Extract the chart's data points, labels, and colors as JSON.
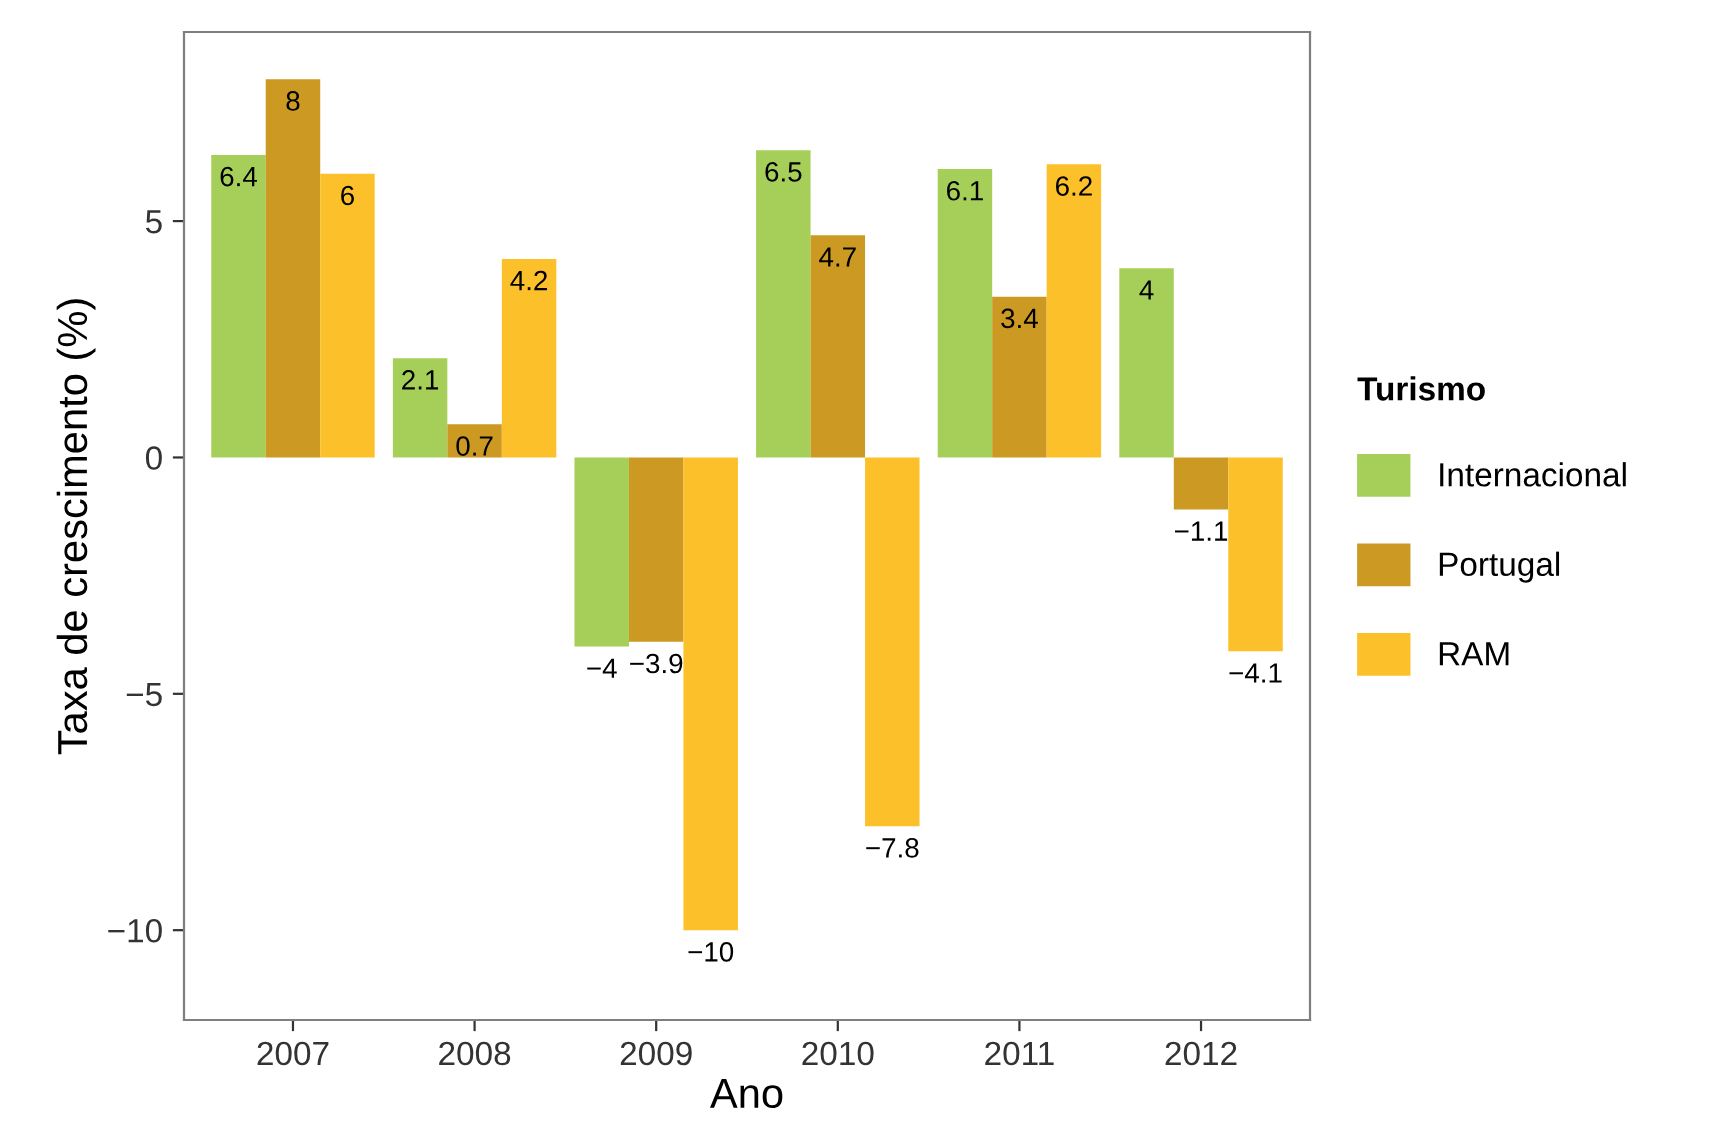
{
  "chart_data": {
    "type": "bar",
    "xlabel": "Ano",
    "ylabel": "Taxa de crescimento (%)",
    "legend_title": "Turismo",
    "categories": [
      "2007",
      "2008",
      "2009",
      "2010",
      "2011",
      "2012"
    ],
    "series": [
      {
        "name": "Internacional",
        "color": "#a6cf5a",
        "values": [
          6.4,
          2.1,
          -4,
          6.5,
          6.1,
          4
        ],
        "value_labels": [
          "6.4",
          "2.1",
          "−4",
          "6.5",
          "6.1",
          "4"
        ]
      },
      {
        "name": "Portugal",
        "color": "#cc9a22",
        "values": [
          8,
          0.7,
          -3.9,
          4.7,
          3.4,
          -1.1
        ],
        "value_labels": [
          "8",
          "0.7",
          "−3.9",
          "4.7",
          "3.4",
          "−1.1"
        ]
      },
      {
        "name": "RAM",
        "color": "#fcc12a",
        "values": [
          6,
          4.2,
          -10,
          -7.8,
          6.2,
          -4.1
        ],
        "value_labels": [
          "6",
          "4.2",
          "−10",
          "−7.8",
          "6.2",
          "−4.1"
        ]
      }
    ],
    "ylim": [
      -11.9,
      9.0
    ],
    "yticks": [
      {
        "value": -10,
        "label": "−10"
      },
      {
        "value": -5,
        "label": "−5"
      },
      0,
      5
    ],
    "grid": false,
    "legend": "right"
  }
}
